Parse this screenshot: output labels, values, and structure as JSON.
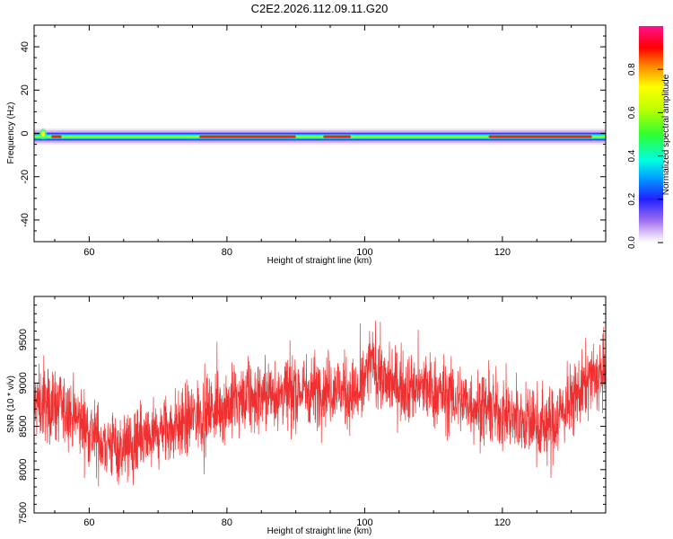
{
  "title": "C2E2.2026.112.09.11.G20",
  "chart_data": [
    {
      "type": "heatmap",
      "xlabel": "Height of straight line (km)",
      "ylabel": "Frequency (Hz)",
      "xlim": [
        52,
        135
      ],
      "ylim": [
        -50,
        50
      ],
      "x_ticks": [
        60,
        80,
        100,
        120
      ],
      "y_ticks": [
        -40,
        -20,
        0,
        20,
        40
      ],
      "band_center_hz": -1.5,
      "colorbar": {
        "label": "Normalized spectral amplitude",
        "range": [
          0,
          1
        ],
        "ticks": [
          "0.0",
          "0.2",
          "0.4",
          "0.6",
          "0.8"
        ]
      }
    },
    {
      "type": "line",
      "xlabel": "Height of straight line (km)",
      "ylabel": "SNR (10 * v/v)",
      "xlim": [
        52,
        135
      ],
      "ylim": [
        7500,
        10000
      ],
      "x_ticks": [
        60,
        80,
        100,
        120
      ],
      "y_ticks": [
        7500,
        8000,
        8500,
        9000,
        9500
      ],
      "color": "#f03030",
      "trend": [
        [
          52,
          8750
        ],
        [
          55,
          8750
        ],
        [
          58,
          8600
        ],
        [
          62,
          8300
        ],
        [
          66,
          8250
        ],
        [
          70,
          8400
        ],
        [
          75,
          8600
        ],
        [
          80,
          8750
        ],
        [
          85,
          8850
        ],
        [
          90,
          8900
        ],
        [
          95,
          8950
        ],
        [
          99,
          8850
        ],
        [
          101,
          9250
        ],
        [
          103,
          9000
        ],
        [
          108,
          8950
        ],
        [
          112,
          8850
        ],
        [
          116,
          8750
        ],
        [
          120,
          8650
        ],
        [
          124,
          8550
        ],
        [
          127,
          8500
        ],
        [
          130,
          8800
        ],
        [
          133,
          9050
        ],
        [
          135,
          9100
        ]
      ],
      "noise_amplitude": 230
    }
  ]
}
